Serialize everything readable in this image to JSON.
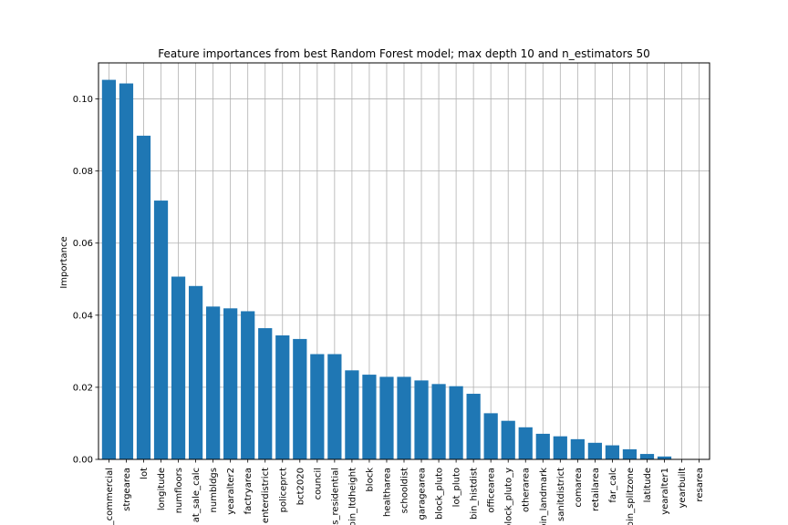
{
  "chart_data": {
    "type": "bar",
    "title": "Feature importances from best Random Forest model; max depth 10 and n_estimators 50",
    "xlabel": "",
    "ylabel": "Importance",
    "ylim": [
      0,
      0.11
    ],
    "yticks": [
      "0.00",
      "0.02",
      "0.04",
      "0.06",
      "0.08",
      "0.10"
    ],
    "grid": true,
    "categories": [
      "_commercial",
      "strgearea",
      "lot",
      "longitude",
      "numfloors",
      "at_sale_calc",
      "numbldgs",
      "yearalter2",
      "factryarea",
      "enterdistrict",
      "policeprct",
      "bct2020",
      "council",
      "s_residential",
      "pin_ltdheight",
      "block",
      "healtharea",
      "schooldist",
      "garagearea",
      "block_pluto",
      "lot_pluto",
      "bin_histdist",
      "officearea",
      "block_pluto_y",
      "otherarea",
      "bin_landmark",
      "sanitdistrict",
      "comarea",
      "retailarea",
      "far_calc",
      "bin_splitzone",
      "latitude",
      "yearalter1",
      "yearbuilt",
      "resarea"
    ],
    "values": [
      0.1053,
      0.1043,
      0.0898,
      0.0718,
      0.0507,
      0.0481,
      0.0424,
      0.0419,
      0.0411,
      0.0364,
      0.0344,
      0.0334,
      0.0292,
      0.0292,
      0.0247,
      0.0235,
      0.0229,
      0.0229,
      0.0219,
      0.0209,
      0.0203,
      0.0182,
      0.0128,
      0.0107,
      0.0089,
      0.0071,
      0.0064,
      0.0056,
      0.0046,
      0.0039,
      0.0028,
      0.0015,
      0.0008,
      0.0001,
      0.0
    ],
    "bar_color": "#1f77b4",
    "grid_color": "#b0b0b0"
  }
}
